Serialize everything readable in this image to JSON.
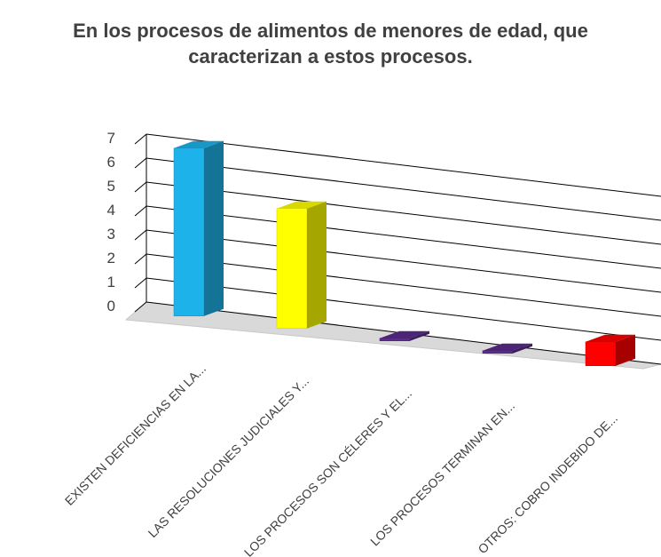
{
  "chart_data": {
    "type": "bar",
    "title_lines": [
      "En los procesos de alimentos de menores de edad, que",
      "caracterizan a estos procesos."
    ],
    "categories": [
      "EXISTEN DEFICIENCIAS EN LA...",
      "LAS RESOLUCIONES JUDICIALES Y...",
      "LOS PROCESOS SON CÉLERES Y EL...",
      "LOS PROCESOS TERMINAN EN...",
      "OTROS: COBRO INDEBIDO DE..."
    ],
    "values": [
      7,
      5,
      0,
      0,
      1
    ],
    "colors": [
      "#1DB2EA",
      "#FFFF00",
      "#5B2C8C",
      "#5B2C8C",
      "#FF0000"
    ],
    "yticks": [
      "0",
      "1",
      "2",
      "3",
      "4",
      "5",
      "6",
      "7"
    ],
    "ylim": [
      0,
      7
    ],
    "grid": true,
    "style": "3d-column"
  }
}
